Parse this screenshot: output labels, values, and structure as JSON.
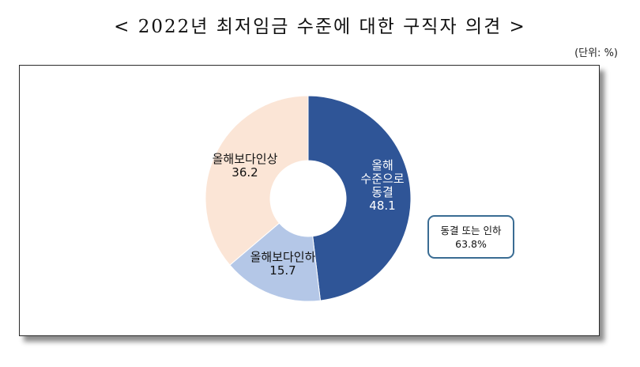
{
  "page": {
    "title": "< 2022년 최저임금 수준에 대한 구직자 의견 >",
    "unit": "(단위: %)"
  },
  "callout": {
    "line1": "동결 또는 인하",
    "line2": "63.8%"
  },
  "colors": {
    "freeze": "#2f5597",
    "decrease": "#b4c7e7",
    "increase": "#fbe5d6"
  },
  "chart_data": {
    "type": "pie",
    "style": "donut",
    "title": "< 2022년 최저임금 수준에 대한 구직자 의견 >",
    "unit": "(단위: %)",
    "slices": [
      {
        "label": "올해 수준으로 동결",
        "label_lines": [
          "올해",
          "수준으로",
          "동결"
        ],
        "value": 48.1,
        "color": "#2f5597",
        "text_color": "#ffffff"
      },
      {
        "label": "올해보다인하",
        "label_lines": [
          "올해보다인하"
        ],
        "value": 15.7,
        "color": "#b4c7e7",
        "text_color": "#111111"
      },
      {
        "label": "올해보다인상",
        "label_lines": [
          "올해보다인상"
        ],
        "value": 36.2,
        "color": "#fbe5d6",
        "text_color": "#111111"
      }
    ],
    "start_angle_deg": 0,
    "direction": "clockwise"
  }
}
